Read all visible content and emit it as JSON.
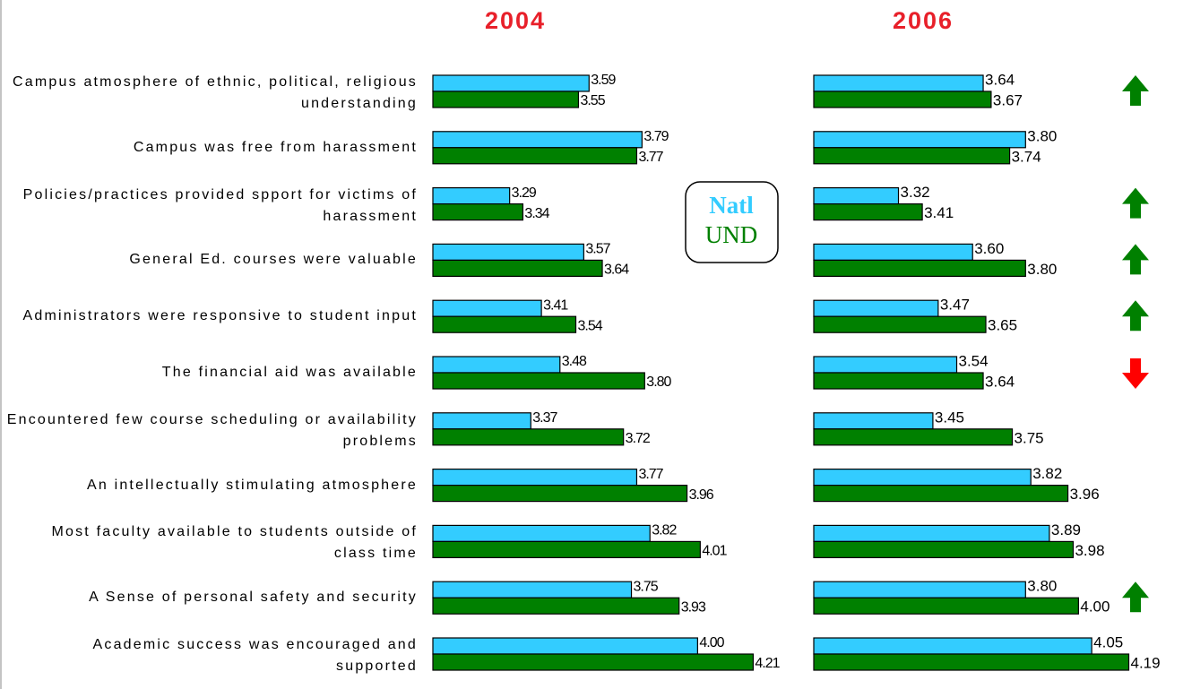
{
  "chart_data": {
    "type": "bar",
    "categories": [
      "Campus atmosphere of ethnic, political, religious understanding",
      "Campus was free from harassment",
      "Policies/practices provided spport for victims of harassment",
      "General Ed. courses were valuable",
      "Administrators were responsive to student input",
      "The financial aid was available",
      "Encountered few course scheduling or availability problems",
      "An intellectually stimulating atmosphere",
      "Most faculty available to students outside of class time",
      "A Sense of personal safety and security",
      "Academic success was encouraged and supported"
    ],
    "series": [
      {
        "name": "Natl",
        "color": "#33ccff"
      },
      {
        "name": "UND",
        "color": "#008000"
      }
    ],
    "xlim": [
      3,
      4.3
    ],
    "panels": [
      {
        "title": "2004",
        "series": [
          {
            "values": [
              3.59,
              3.79,
              3.29,
              3.57,
              3.41,
              3.48,
              3.37,
              3.77,
              3.82,
              3.75,
              4.0
            ],
            "value_labels": [
              "3.59",
              "3.79",
              "3.29",
              "3.57",
              "3.41",
              "3.48",
              "3.37",
              "3.77",
              "3.82",
              "3.75",
              "4.00"
            ]
          },
          {
            "values": [
              3.55,
              3.77,
              3.34,
              3.64,
              3.54,
              3.8,
              3.72,
              3.96,
              4.01,
              3.93,
              4.21
            ],
            "value_labels": [
              "3.55",
              "3.77",
              "3.34",
              "3.64",
              "3.54",
              "3.80",
              "3.72",
              "3.96",
              "4.01",
              "3.93",
              "4.21"
            ]
          }
        ]
      },
      {
        "title": "2006",
        "series": [
          {
            "values": [
              3.64,
              3.8,
              3.32,
              3.6,
              3.47,
              3.54,
              3.45,
              3.82,
              3.89,
              3.8,
              4.05
            ],
            "value_labels": [
              "3.64",
              "3.80",
              "3.32",
              "3.60",
              "3.47",
              "3.54",
              "3.45",
              "3.82",
              "3.89",
              "3.80",
              "4.05"
            ]
          },
          {
            "values": [
              3.67,
              3.74,
              3.41,
              3.8,
              3.65,
              3.64,
              3.75,
              3.96,
              3.98,
              4.0,
              4.19
            ],
            "value_labels": [
              "3.67",
              "3.74",
              "3.41",
              "3.80",
              "3.65",
              "3.64",
              "3.75",
              "3.96",
              "3.98",
              "4.00",
              "4.19"
            ]
          }
        ]
      }
    ],
    "trend": [
      "up",
      null,
      "up",
      "up",
      "up",
      "down",
      null,
      null,
      null,
      "up",
      null
    ],
    "trend_colors": {
      "up": "#008000",
      "down": "#ff0000"
    }
  }
}
